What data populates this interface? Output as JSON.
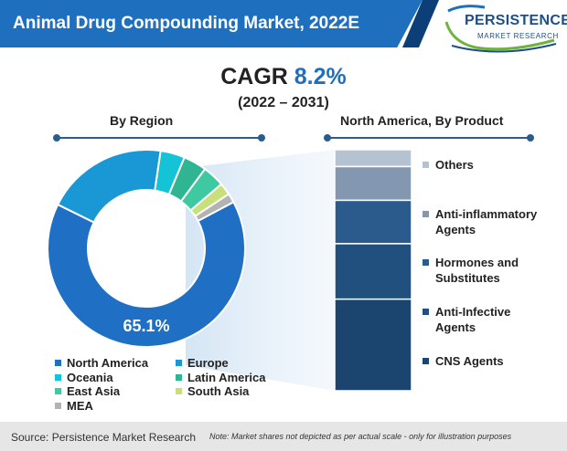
{
  "title": "Animal Drug Compounding Market, 2022E",
  "logo": {
    "name": "PERSISTENCE",
    "tagline": "MARKET RESEARCH"
  },
  "cagr": {
    "label": "CAGR",
    "value": "8.2%",
    "period": "(2022 – 2031)"
  },
  "chart_data": [
    {
      "type": "pie",
      "title": "By Region",
      "series": [
        {
          "name": "North America",
          "value": 65.1,
          "color": "#1f6fc5"
        },
        {
          "name": "Europe",
          "value": 20.0,
          "color": "#1a98d6"
        },
        {
          "name": "Oceania",
          "value": 4.0,
          "color": "#14c4d6"
        },
        {
          "name": "Latin America",
          "value": 3.8,
          "color": "#2fb592"
        },
        {
          "name": "East Asia",
          "value": 3.6,
          "color": "#3fc9a0"
        },
        {
          "name": "South Asia",
          "value": 2.0,
          "color": "#c9e07a"
        },
        {
          "name": "MEA",
          "value": 1.5,
          "color": "#b3b3b3"
        }
      ],
      "data_labels": [
        "65.1%"
      ]
    },
    {
      "type": "bar",
      "title": "North America, By Product",
      "categories": [
        "Others",
        "Anti-inflammatory Agents",
        "Hormones and Substitutes",
        "Anti-Infective Agents",
        "CNS Agents"
      ],
      "values": [
        7,
        14,
        18,
        23,
        38
      ],
      "colors": [
        "#b5c2d2",
        "#8497b0",
        "#2b5a8c",
        "#214f7e",
        "#1b446f"
      ],
      "stacked": true
    }
  ],
  "footer": {
    "source": "Source: Persistence Market Research",
    "note": "Note: Market shares not depicted as per actual scale - only for illustration purposes"
  }
}
